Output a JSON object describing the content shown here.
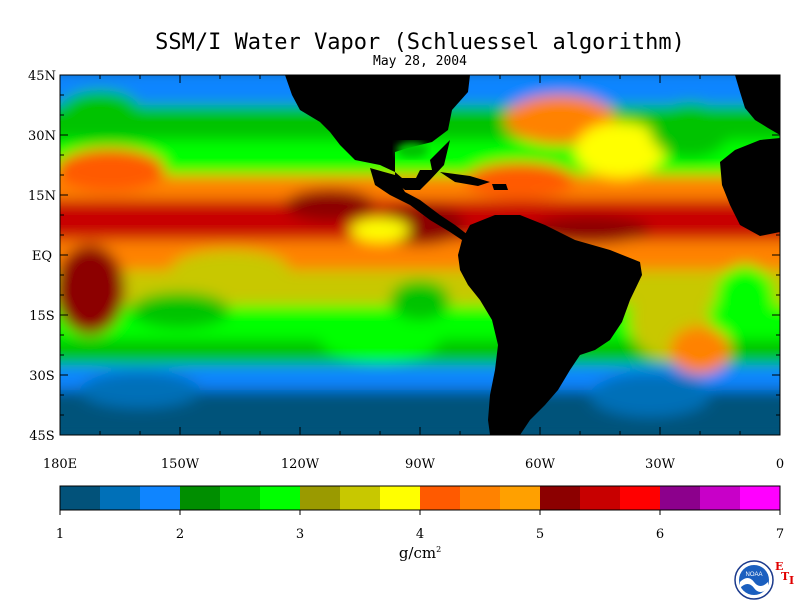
{
  "title": "SSM/I Water Vapor (Schluessel algorithm)",
  "date": "May 28, 2004",
  "units_base": "g/cm",
  "units_exp": "2",
  "logo": {
    "text": "NOAA",
    "eti": [
      "E",
      "T",
      "I"
    ]
  },
  "map": {
    "lat_labels": [
      "45N",
      "30N",
      "15N",
      "EQ",
      "15S",
      "30S",
      "45S"
    ],
    "lat_values": [
      45,
      30,
      15,
      0,
      -15,
      -30,
      -45
    ],
    "lon_labels": [
      "180E",
      "150W",
      "120W",
      "90W",
      "60W",
      "30W",
      "0"
    ],
    "lon_values": [
      -180,
      -150,
      -120,
      -90,
      -60,
      -30,
      0
    ],
    "lon_range": [
      -180,
      0
    ],
    "lat_range": [
      -45,
      45
    ]
  },
  "colorbar": {
    "min": 1,
    "max": 7,
    "tick_labels": [
      "1",
      "2",
      "3",
      "4",
      "5",
      "6",
      "7"
    ],
    "colors": [
      "#02527a",
      "#0070b8",
      "#0f85ff",
      "#008e00",
      "#00c300",
      "#00ff00",
      "#9a9a00",
      "#c8c800",
      "#ffff00",
      "#ff5a00",
      "#ff8200",
      "#ffa000",
      "#8c0000",
      "#c80000",
      "#ff0000",
      "#8c008c",
      "#c800c8",
      "#ff00ff"
    ]
  }
}
